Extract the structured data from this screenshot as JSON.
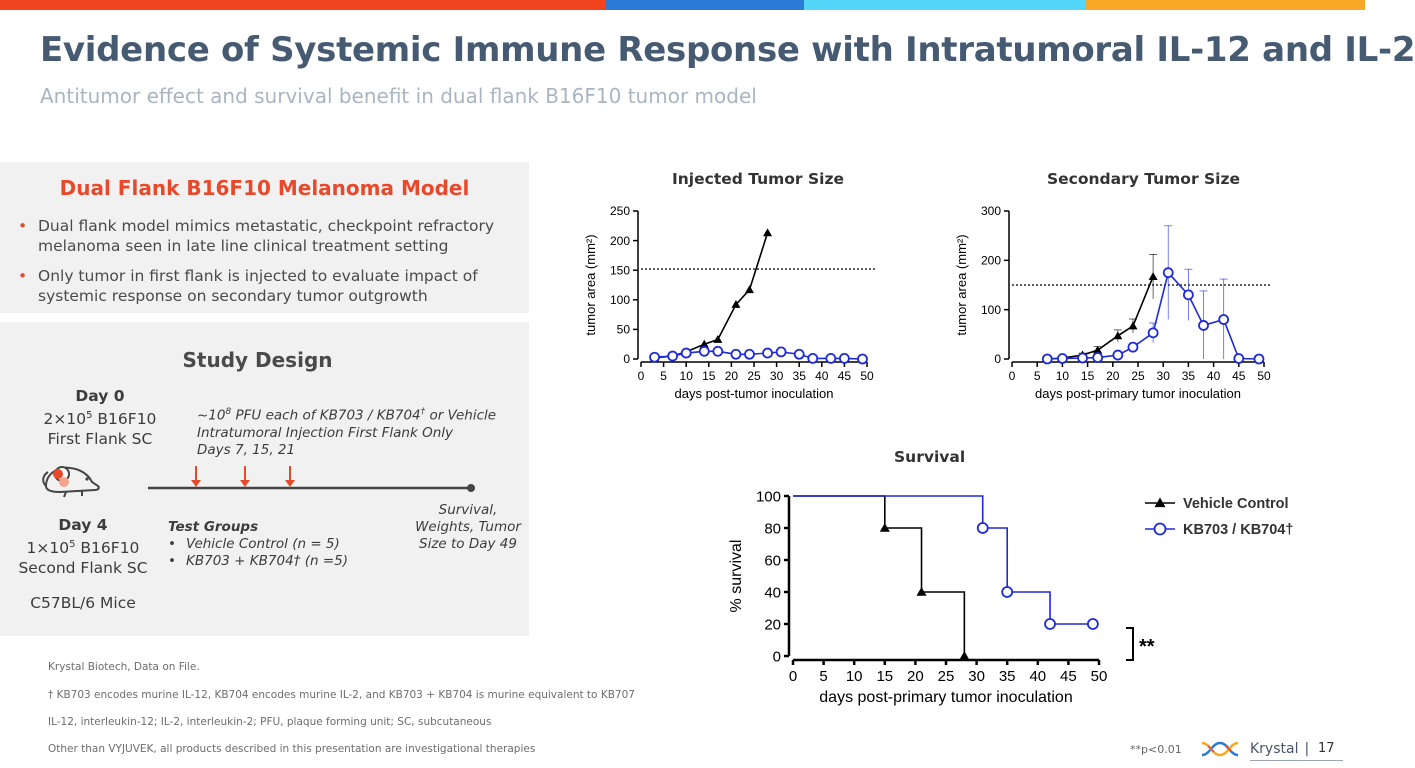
{
  "header": {
    "title": "Evidence of Systemic Immune Response with Intratumoral IL-12 and IL-2",
    "subtitle": "Antitumor effect and survival benefit in dual flank B16F10 tumor model"
  },
  "colors": {
    "accent_red": "#e8492b",
    "title_blue": "#465a72",
    "bar_red": "#f0431e",
    "bar_blue": "#2b7ad8",
    "bar_cyan": "#53d6f7",
    "bar_orange": "#f7a826",
    "series_black": "#000000",
    "series_blue": "#1f2bd6"
  },
  "model_panel": {
    "heading": "Dual Flank B16F10 Melanoma Model",
    "bullet_char": "•",
    "bullets": [
      "Dual flank model mimics metastatic, checkpoint refractory melanoma seen in late line clinical treatment setting",
      "Only tumor in first flank is injected to evaluate impact of systemic response on secondary tumor outgrowth"
    ]
  },
  "study_design": {
    "heading": "Study Design",
    "day0_label": "Day 0",
    "day0_line1_pre": "2×10",
    "day0_line1_exp": "5",
    "day0_line1_post": " B16F10",
    "day0_line2": "First Flank SC",
    "injection_pre": "~10",
    "injection_exp": "8",
    "injection_line1_post": " PFU each of KB703 / KB704",
    "dagger": "†",
    "injection_line1_end": " or Vehicle",
    "injection_line2": "Intratumoral Injection First Flank Only",
    "injection_line3": "Days 7, 15, 21",
    "day4_label": "Day 4",
    "day4_line1_pre": "1×10",
    "day4_line1_exp": "5",
    "day4_line1_post": "  B16F10",
    "day4_line2": "Second Flank SC",
    "mice": "C57BL/6 Mice",
    "test_groups_label": "Test Groups",
    "groups": [
      "Vehicle Control (n = 5)",
      "KB703 + KB704† (n =5)"
    ],
    "endpoint_lines": [
      "Survival,",
      "Weights, Tumor",
      "Size to Day 49"
    ],
    "mouse_icon": "mouse-icon",
    "arrow_icon": "arrow-down-icon"
  },
  "footnotes": [
    "Krystal Biotech, Data on File.",
    "† KB703 encodes murine IL-12, KB704 encodes murine IL-2, and KB703 + KB704 is murine equivalent to KB707",
    "IL-12, interleukin-12; IL-2, interleukin-2; PFU, plaque forming unit; SC, subcutaneous",
    "Other than VYJUVEK, all products described in this presentation are investigational therapies"
  ],
  "significance_note": "**p<0.01",
  "significance_mark": "**",
  "logo": {
    "word": "Krystal",
    "separator": "|",
    "icon": "krystal-helix-icon"
  },
  "page_number": "17",
  "chart_data": [
    {
      "type": "line",
      "title": "Injected Tumor Size",
      "xlabel": "days post-tumor inoculation",
      "ylabel": "tumor area (mm²)",
      "xlim": [
        0,
        50
      ],
      "ylim": [
        0,
        250
      ],
      "xticks": [
        0,
        5,
        10,
        15,
        20,
        25,
        30,
        35,
        40,
        45,
        50
      ],
      "yticks": [
        0,
        50,
        100,
        150,
        200,
        250
      ],
      "reference_line_y": 152,
      "series": [
        {
          "name": "Vehicle Control",
          "x": [
            3,
            7,
            10,
            14,
            17,
            21,
            24,
            28
          ],
          "y": [
            2,
            5,
            12,
            25,
            33,
            92,
            117,
            213
          ]
        },
        {
          "name": "KB703 / KB704†",
          "x": [
            3,
            7,
            10,
            14,
            17,
            21,
            24,
            28,
            31,
            35,
            38,
            42,
            45,
            49
          ],
          "y": [
            3,
            5,
            10,
            13,
            13,
            8,
            8,
            10,
            12,
            8,
            1,
            1,
            1,
            0
          ]
        }
      ]
    },
    {
      "type": "line",
      "title": "Secondary Tumor Size",
      "xlabel": "days post-primary tumor inoculation",
      "ylabel": "tumor area (mm²)",
      "xlim": [
        0,
        50
      ],
      "ylim": [
        0,
        300
      ],
      "xticks": [
        0,
        5,
        10,
        15,
        20,
        25,
        30,
        35,
        40,
        45,
        50
      ],
      "yticks": [
        0,
        100,
        200,
        300
      ],
      "reference_line_y": 150,
      "series": [
        {
          "name": "Vehicle Control",
          "x": [
            7,
            10,
            14,
            17,
            21,
            24,
            28
          ],
          "y": [
            0,
            2,
            8,
            18,
            47,
            67,
            167
          ],
          "err": [
            0,
            2,
            4,
            7,
            12,
            14,
            45
          ]
        },
        {
          "name": "KB703 / KB704†",
          "x": [
            7,
            10,
            14,
            17,
            21,
            24,
            28,
            31,
            35,
            38,
            42,
            45,
            49
          ],
          "y": [
            0,
            1,
            2,
            3,
            8,
            24,
            53,
            175,
            130,
            68,
            80,
            1,
            0
          ],
          "err": [
            0,
            1,
            1,
            2,
            4,
            8,
            20,
            95,
            52,
            70,
            82,
            0,
            0
          ]
        }
      ]
    },
    {
      "type": "line",
      "title": "Survival",
      "xlabel": "days post-primary tumor inoculation",
      "ylabel": "% survival",
      "xlim": [
        0,
        50
      ],
      "ylim": [
        0,
        100
      ],
      "xticks": [
        0,
        5,
        10,
        15,
        20,
        25,
        30,
        35,
        40,
        45,
        50
      ],
      "yticks": [
        0,
        20,
        40,
        60,
        80,
        100
      ],
      "legend_position": "right",
      "series": [
        {
          "name": "Vehicle Control",
          "steps": [
            [
              0,
              100
            ],
            [
              15,
              100
            ],
            [
              15,
              80
            ],
            [
              21,
              80
            ],
            [
              21,
              40
            ],
            [
              28,
              40
            ],
            [
              28,
              0
            ]
          ],
          "markers": [
            [
              15,
              80
            ],
            [
              21,
              40
            ],
            [
              28,
              0
            ]
          ]
        },
        {
          "name": "KB703 / KB704†",
          "steps": [
            [
              0,
              100
            ],
            [
              31,
              100
            ],
            [
              31,
              80
            ],
            [
              35,
              80
            ],
            [
              35,
              40
            ],
            [
              42,
              40
            ],
            [
              42,
              20
            ],
            [
              49,
              20
            ]
          ],
          "markers": [
            [
              31,
              80
            ],
            [
              35,
              40
            ],
            [
              42,
              20
            ],
            [
              49,
              20
            ]
          ]
        }
      ]
    }
  ]
}
